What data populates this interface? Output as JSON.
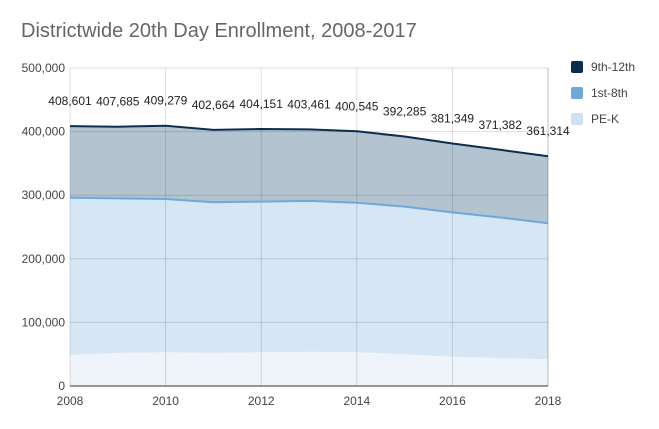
{
  "chart_data": {
    "type": "area",
    "stacked": true,
    "title": "Districtwide 20th Day Enrollment, 2008-2017",
    "xlabel": "",
    "ylabel": "",
    "xlim": [
      2008,
      2018
    ],
    "ylim": [
      0,
      500000
    ],
    "x": [
      2008,
      2009,
      2010,
      2011,
      2012,
      2013,
      2014,
      2015,
      2016,
      2017,
      2018
    ],
    "x_ticks": [
      "2008",
      "2010",
      "2012",
      "2014",
      "2016",
      "2018"
    ],
    "x_tick_values": [
      2008,
      2010,
      2012,
      2014,
      2016,
      2018
    ],
    "y_ticks": [
      "0",
      "100,000",
      "200,000",
      "300,000",
      "400,000",
      "500,000"
    ],
    "y_tick_values": [
      0,
      100000,
      200000,
      300000,
      400000,
      500000
    ],
    "grid": true,
    "legend_position": "right",
    "series": [
      {
        "name": "PE-K",
        "color": "#cfe2f3",
        "values": [
          49000,
          52000,
          53000,
          52000,
          53000,
          54000,
          53000,
          50000,
          46000,
          44000,
          42000
        ]
      },
      {
        "name": "1st-8th",
        "color": "#6fa8dc",
        "values": [
          247000,
          243000,
          241000,
          237000,
          237000,
          237000,
          235000,
          232000,
          227000,
          221000,
          214000
        ]
      },
      {
        "name": "9th-12th",
        "color": "#0b2e4f",
        "values": [
          112601,
          112685,
          115279,
          113664,
          114151,
          112461,
          112545,
          110285,
          108349,
          106382,
          105314
        ]
      }
    ],
    "totals": [
      408601,
      407685,
      409279,
      402664,
      404151,
      403461,
      400545,
      392285,
      381349,
      371382,
      361314
    ],
    "data_labels": [
      "408,601",
      "407,685",
      "409,279",
      "402,664",
      "404,151",
      "403,461",
      "400,545",
      "392,285",
      "381,349",
      "371,382",
      "361,314"
    ]
  },
  "legend": [
    {
      "label": "9th-12th",
      "color": "#0b2e4f"
    },
    {
      "label": "1st-8th",
      "color": "#6fa8dc"
    },
    {
      "label": "PE-K",
      "color": "#cfe2f3"
    }
  ]
}
